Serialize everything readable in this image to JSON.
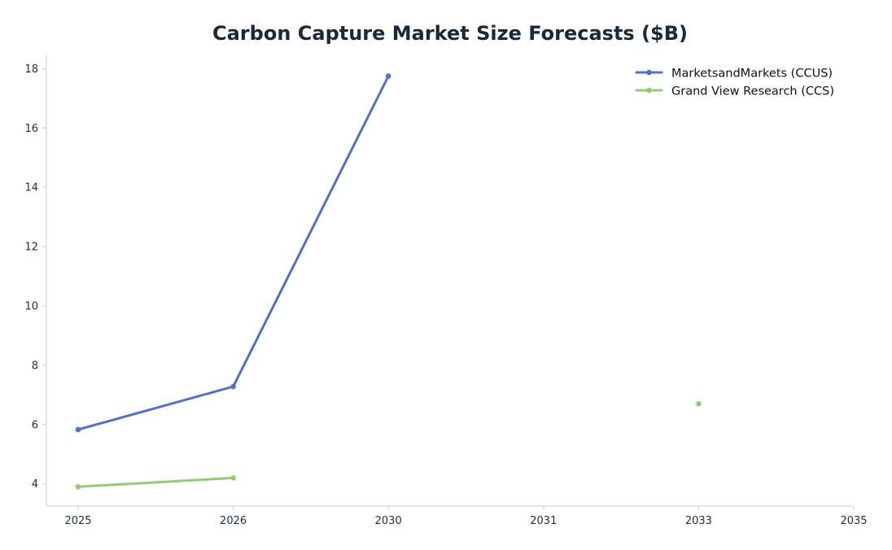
{
  "chart_data": {
    "type": "line",
    "title": "Carbon Capture Market Size Forecasts ($B)",
    "xlabel": "",
    "ylabel": "",
    "categories": [
      "2025",
      "2026",
      "2030",
      "2031",
      "2033",
      "2035"
    ],
    "ylim": [
      3.25,
      18.45
    ],
    "yticks": [
      4,
      6,
      8,
      10,
      12,
      14,
      16,
      18
    ],
    "grid": false,
    "legend_position": "top-right",
    "series": [
      {
        "name": "MarketsandMarkets (CCUS)",
        "color": "#5470c6",
        "values": [
          5.83,
          7.28,
          17.75,
          null,
          null,
          null
        ]
      },
      {
        "name": "Grand View Research (CCS)",
        "color": "#91cc75",
        "values": [
          3.9,
          4.2,
          null,
          null,
          6.7,
          null
        ]
      }
    ]
  }
}
